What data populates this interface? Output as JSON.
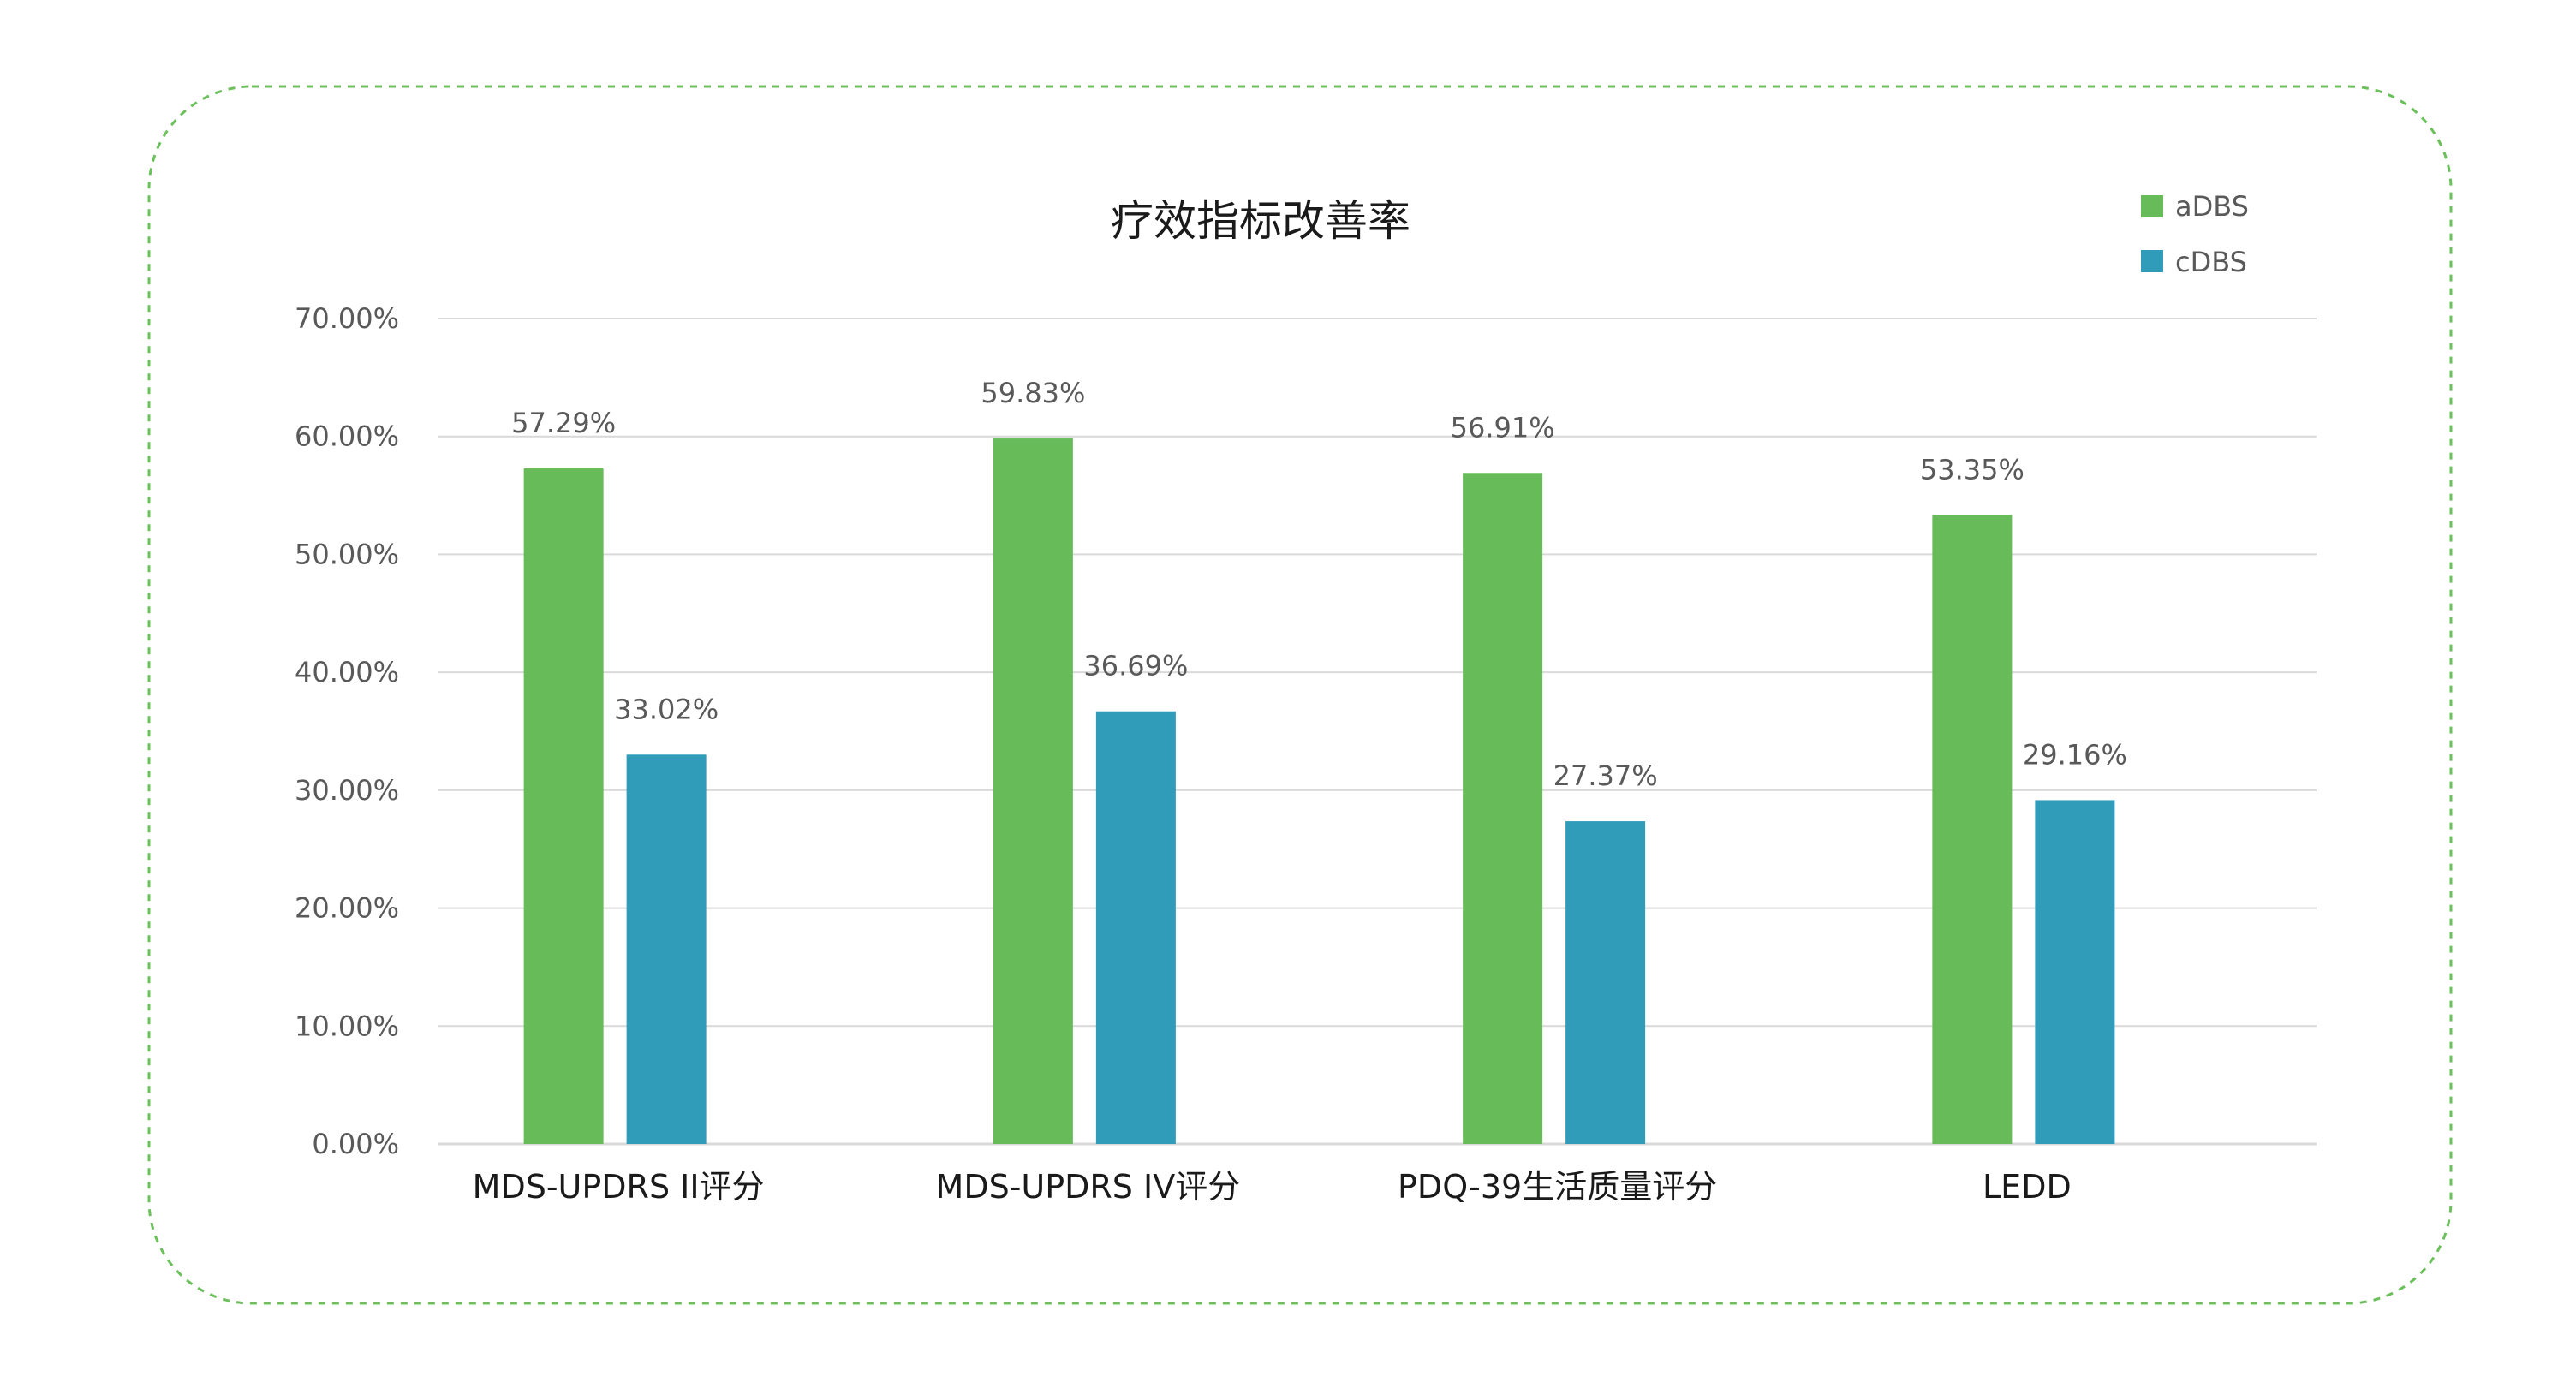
{
  "chart_data": {
    "type": "bar",
    "title": "疗效指标改善率",
    "categories": [
      "MDS-UPDRS II评分",
      "MDS-UPDRS IV评分",
      "PDQ-39生活质量评分",
      "LEDD"
    ],
    "series": [
      {
        "name": "aDBS",
        "values": [
          57.29,
          59.83,
          56.91,
          53.35
        ],
        "labels": [
          "57.29%",
          "59.83%",
          "56.91%",
          "53.35%"
        ],
        "color": "#68bb59"
      },
      {
        "name": "cDBS",
        "values": [
          33.02,
          36.69,
          27.37,
          29.16
        ],
        "labels": [
          "33.02%",
          "36.69%",
          "27.37%",
          "29.16%"
        ],
        "color": "#319bba"
      }
    ],
    "yticks": [
      "0.00%",
      "10.00%",
      "20.00%",
      "30.00%",
      "40.00%",
      "50.00%",
      "60.00%",
      "70.00%"
    ],
    "ylim": [
      0,
      70
    ],
    "xlabel": "",
    "ylabel": "",
    "grid": true,
    "legend": "top-right",
    "colors": {
      "frame_border": "#6cc05c",
      "gridline": "#d9d9d9",
      "axis_text": "#595959",
      "label_text": "#595959",
      "title_text": "#1a1a1a"
    }
  }
}
